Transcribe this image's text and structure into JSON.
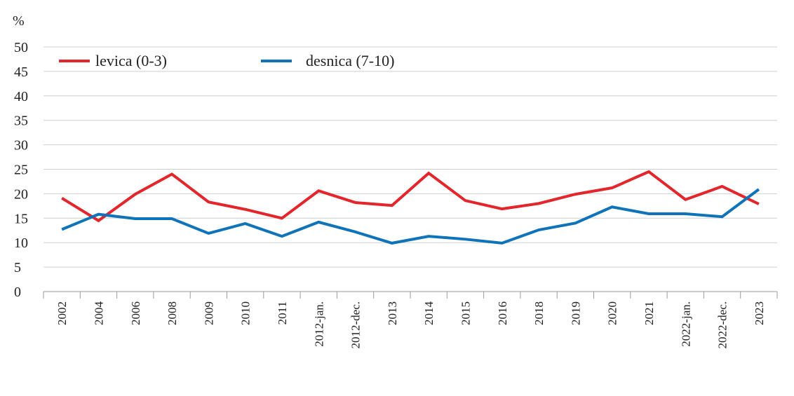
{
  "chart_data": {
    "type": "line",
    "ylabel": "%",
    "ylim": [
      0,
      50
    ],
    "yticks": [
      0,
      5,
      10,
      15,
      20,
      25,
      30,
      35,
      40,
      45,
      50
    ],
    "grid": true,
    "legend_position": "top-left",
    "categories": [
      "2002",
      "2004",
      "2006",
      "2008",
      "2009",
      "2010",
      "2011",
      "2012-jan.",
      "2012-dec.",
      "2013",
      "2014",
      "2015",
      "2016",
      "2018",
      "2019",
      "2020",
      "2021",
      "2022-jan.",
      "2022-dec.",
      "2023"
    ],
    "series": [
      {
        "name": "levica (0-3)",
        "color": "#e3262b",
        "values": [
          19.1,
          14.5,
          19.9,
          24.0,
          18.3,
          16.8,
          15.0,
          20.6,
          18.2,
          17.6,
          24.2,
          18.6,
          16.9,
          18.0,
          19.9,
          21.2,
          24.5,
          18.8,
          21.5,
          17.9
        ]
      },
      {
        "name": "desnica (7-10)",
        "color": "#0f73b9",
        "values": [
          12.7,
          15.8,
          14.9,
          14.9,
          11.9,
          13.9,
          11.3,
          14.2,
          12.2,
          9.9,
          11.3,
          10.7,
          9.9,
          12.6,
          14.0,
          17.3,
          15.9,
          15.9,
          15.3,
          20.9
        ]
      }
    ]
  }
}
